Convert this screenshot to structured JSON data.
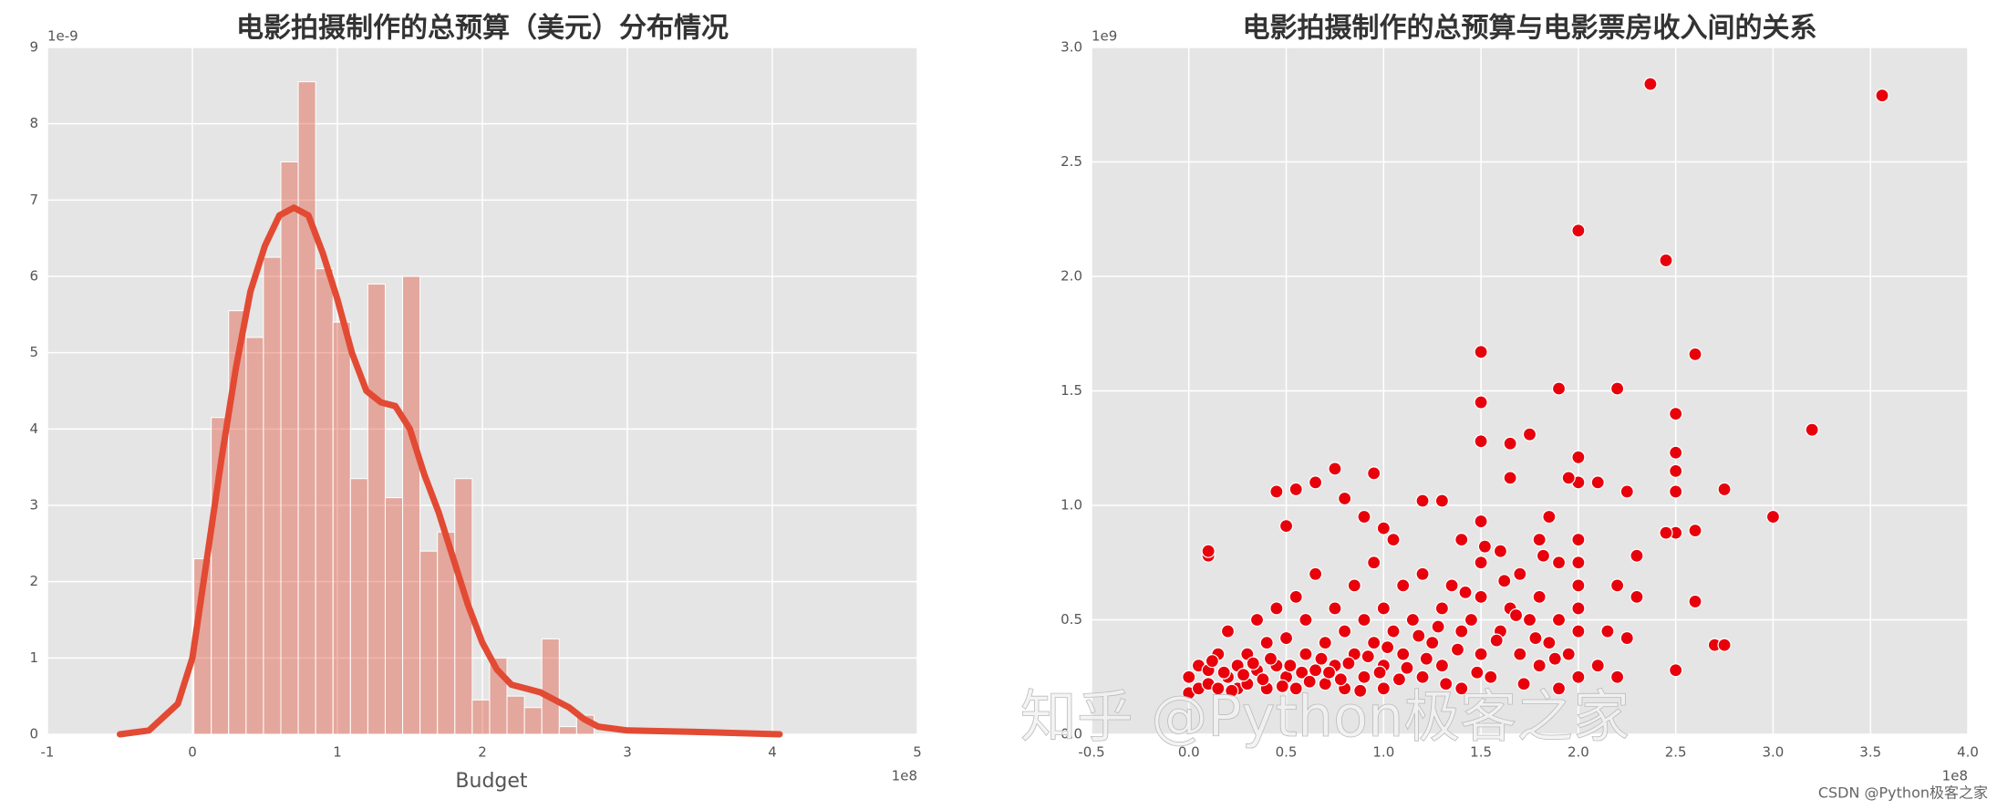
{
  "chart_data": [
    {
      "type": "histogram",
      "title": "电影拍摄制作的总预算（美元）分布情况",
      "x_label": "Budget",
      "x_offset_label": "1e8",
      "y_offset_label": "1e-9",
      "bins": [
        0.01,
        0.13,
        0.25,
        0.37,
        0.49,
        0.61,
        0.73,
        0.85,
        0.97,
        1.09,
        1.21,
        1.33,
        1.45,
        1.57,
        1.69,
        1.81,
        1.93,
        2.05,
        2.17,
        2.29,
        2.41,
        2.53,
        2.65,
        2.77,
        2.89,
        3.01,
        3.13,
        3.25,
        3.37,
        3.49,
        3.61
      ],
      "values": [
        2.3,
        4.15,
        5.55,
        5.2,
        6.25,
        7.5,
        8.55,
        6.1,
        5.4,
        3.35,
        5.9,
        3.1,
        6.0,
        2.4,
        2.65,
        3.35,
        0.45,
        1.0,
        0.5,
        0.35,
        1.25,
        0.1,
        0.25,
        0,
        0,
        0,
        0,
        0,
        0,
        0.05
      ],
      "color": "#e24a33",
      "kde": {
        "x": [
          -0.5,
          -0.3,
          -0.1,
          0,
          0.1,
          0.2,
          0.3,
          0.4,
          0.5,
          0.6,
          0.7,
          0.8,
          0.9,
          1.0,
          1.1,
          1.2,
          1.3,
          1.4,
          1.5,
          1.6,
          1.7,
          1.8,
          1.9,
          2.0,
          2.1,
          2.2,
          2.3,
          2.4,
          2.5,
          2.6,
          2.7,
          2.8,
          3.0,
          3.5,
          4.05
        ],
        "values": [
          0,
          0.05,
          0.4,
          1.0,
          2.3,
          3.6,
          4.8,
          5.8,
          6.4,
          6.8,
          6.9,
          6.8,
          6.3,
          5.7,
          5.0,
          4.5,
          4.35,
          4.3,
          4.0,
          3.4,
          2.9,
          2.3,
          1.7,
          1.2,
          0.85,
          0.65,
          0.6,
          0.55,
          0.45,
          0.35,
          0.2,
          0.1,
          0.05,
          0.03,
          0
        ],
        "color": "#e24a33"
      },
      "xlim": [
        -1,
        5
      ],
      "xticks": [
        -1,
        0,
        1,
        2,
        3,
        4,
        5
      ],
      "ylim": [
        0,
        9
      ],
      "yticks": [
        0,
        1,
        2,
        3,
        4,
        5,
        6,
        7,
        8,
        9
      ],
      "grid": true
    },
    {
      "type": "scatter",
      "title": "电影拍摄制作的总预算与电影票房收入间的关系",
      "x_offset_label": "1e8",
      "y_offset_label": "1e9",
      "color": "#e8000b",
      "x": [
        2.37,
        3.56,
        2.0,
        2.45,
        2.6,
        1.5,
        1.9,
        2.2,
        3.2,
        1.5,
        2.5,
        1.5,
        1.65,
        1.75,
        2.0,
        2.5,
        2.5,
        1.65,
        0.75,
        0.95,
        0.45,
        0.55,
        0.65,
        1.2,
        1.3,
        0.8,
        2.75,
        2.5,
        2.25,
        2.0,
        1.95,
        2.1,
        3.0,
        2.6,
        2.5,
        2.45,
        0.1,
        0.1,
        2.7,
        2.75,
        2.6,
        2.5,
        0.5,
        0.9,
        1.0,
        1.05,
        1.4,
        1.5,
        1.6,
        1.8,
        1.85,
        1.9,
        2.3,
        2.0,
        2.0,
        2.0,
        2.2,
        0.0,
        0.0,
        0.05,
        0.05,
        0.1,
        0.1,
        0.15,
        0.15,
        0.2,
        0.2,
        0.25,
        0.25,
        0.3,
        0.3,
        0.35,
        0.35,
        0.4,
        0.4,
        0.45,
        0.45,
        0.5,
        0.5,
        0.55,
        0.55,
        0.6,
        0.6,
        0.65,
        0.65,
        0.7,
        0.7,
        0.75,
        0.75,
        0.8,
        0.8,
        0.85,
        0.85,
        0.9,
        0.9,
        0.95,
        0.95,
        1.0,
        1.0,
        1.0,
        1.05,
        1.1,
        1.1,
        1.15,
        1.2,
        1.2,
        1.25,
        1.3,
        1.3,
        1.35,
        1.4,
        1.4,
        1.45,
        1.5,
        1.5,
        1.5,
        1.55,
        1.6,
        1.65,
        1.7,
        1.7,
        1.75,
        1.8,
        1.8,
        1.85,
        1.9,
        1.9,
        1.95,
        2.0,
        2.0,
        2.0,
        2.1,
        2.15,
        2.2,
        2.25,
        2.3,
        0.12,
        0.18,
        0.22,
        0.28,
        0.33,
        0.38,
        0.42,
        0.48,
        0.52,
        0.58,
        0.62,
        0.68,
        0.72,
        0.78,
        0.82,
        0.88,
        0.92,
        0.98,
        1.02,
        1.08,
        1.12,
        1.18,
        1.22,
        1.28,
        1.32,
        1.38,
        1.42,
        1.48,
        1.52,
        1.58,
        1.62,
        1.68,
        1.72,
        1.78,
        1.82,
        1.88
      ],
      "values": [
        2.84,
        2.79,
        2.2,
        2.07,
        1.66,
        1.67,
        1.51,
        1.51,
        1.33,
        1.45,
        1.4,
        1.28,
        1.27,
        1.31,
        1.21,
        1.23,
        1.15,
        1.12,
        1.16,
        1.14,
        1.06,
        1.07,
        1.1,
        1.02,
        1.02,
        1.03,
        1.07,
        1.06,
        1.06,
        1.1,
        1.12,
        1.1,
        0.95,
        0.89,
        0.88,
        0.88,
        0.78,
        0.8,
        0.39,
        0.39,
        0.58,
        0.28,
        0.91,
        0.95,
        0.9,
        0.85,
        0.85,
        0.93,
        0.8,
        0.85,
        0.95,
        0.75,
        0.78,
        0.85,
        0.75,
        0.65,
        0.65,
        0.25,
        0.18,
        0.2,
        0.3,
        0.22,
        0.28,
        0.35,
        0.2,
        0.25,
        0.45,
        0.3,
        0.2,
        0.35,
        0.22,
        0.5,
        0.28,
        0.2,
        0.4,
        0.3,
        0.55,
        0.25,
        0.42,
        0.6,
        0.2,
        0.35,
        0.5,
        0.28,
        0.7,
        0.4,
        0.22,
        0.55,
        0.3,
        0.45,
        0.2,
        0.65,
        0.35,
        0.5,
        0.25,
        0.4,
        0.75,
        0.3,
        0.55,
        0.2,
        0.45,
        0.65,
        0.35,
        0.5,
        0.25,
        0.7,
        0.4,
        0.55,
        0.3,
        0.65,
        0.45,
        0.2,
        0.5,
        0.35,
        0.6,
        0.75,
        0.25,
        0.45,
        0.55,
        0.35,
        0.7,
        0.5,
        0.3,
        0.6,
        0.4,
        0.2,
        0.5,
        0.35,
        0.25,
        0.45,
        0.55,
        0.3,
        0.45,
        0.25,
        0.42,
        0.6,
        0.32,
        0.27,
        0.19,
        0.26,
        0.31,
        0.24,
        0.33,
        0.21,
        0.3,
        0.27,
        0.23,
        0.33,
        0.27,
        0.24,
        0.31,
        0.19,
        0.34,
        0.27,
        0.38,
        0.24,
        0.29,
        0.43,
        0.33,
        0.47,
        0.22,
        0.37,
        0.62,
        0.27,
        0.82,
        0.41,
        0.67,
        0.52,
        0.22,
        0.42,
        0.78,
        0.33
      ],
      "xlim": [
        -0.5,
        4.0
      ],
      "xticks": [
        -0.5,
        {
          "value": 0,
          "label": "0.0"
        },
        0.5,
        {
          "value": 1,
          "label": "1.0"
        },
        1.5,
        {
          "value": 2,
          "label": "2.0"
        },
        2.5,
        {
          "value": 3,
          "label": "3.0"
        },
        3.5,
        {
          "value": 4,
          "label": "4.0"
        }
      ],
      "ylim": [
        0,
        3.0
      ],
      "yticks": [
        {
          "value": 0,
          "label": "0.0"
        },
        0.5,
        {
          "value": 1,
          "label": "1.0"
        },
        1.5,
        {
          "value": 2,
          "label": "2.0"
        },
        2.5,
        {
          "value": 3,
          "label": "3.0"
        }
      ],
      "grid": true
    }
  ],
  "watermark": "知乎 @Python极客之家",
  "footer": "CSDN @Python极客之家"
}
